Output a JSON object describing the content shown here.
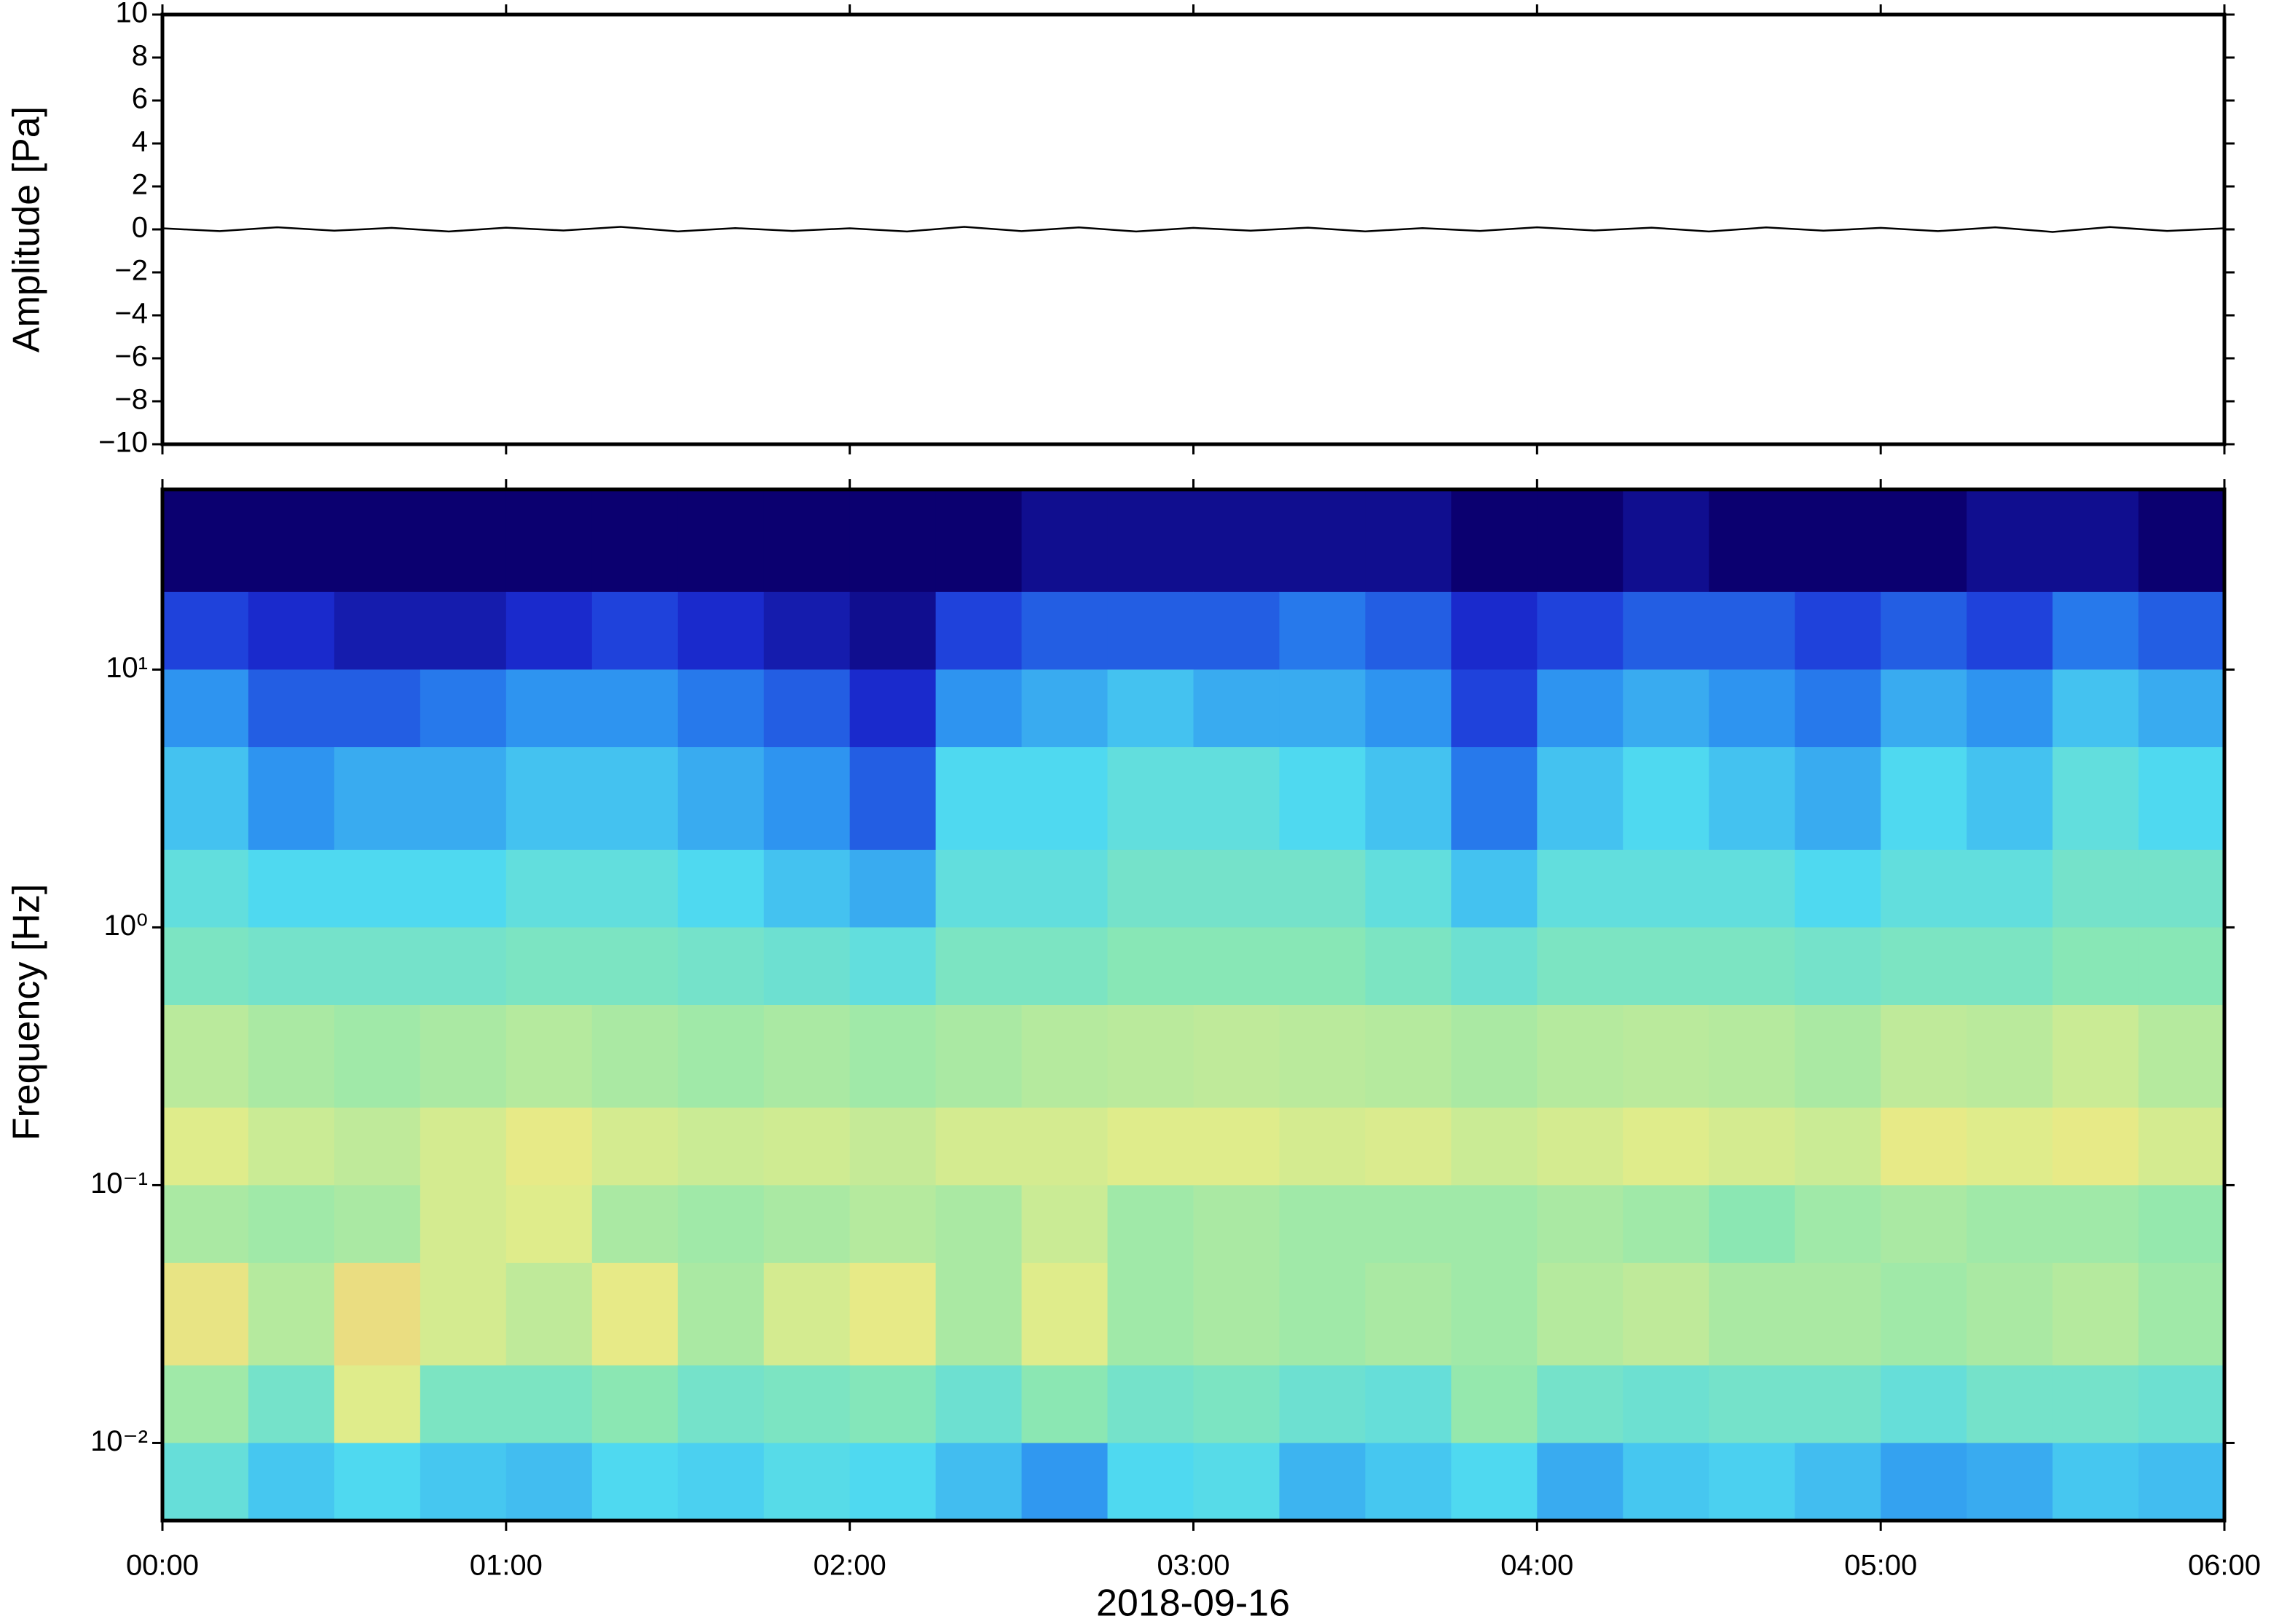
{
  "chart_data": [
    {
      "type": "line",
      "ylabel": "Amplitude [Pa]",
      "ylim": [
        -10,
        10
      ],
      "yticks": [
        {
          "value": -10,
          "label": "−10"
        },
        {
          "value": -8,
          "label": "−8"
        },
        {
          "value": -6,
          "label": "−6"
        },
        {
          "value": -4,
          "label": "−4"
        },
        {
          "value": -2,
          "label": "−2"
        },
        0,
        2,
        4,
        6,
        8,
        10
      ],
      "xlim": [
        "2018-09-16T00:00",
        "2018-09-16T06:00"
      ],
      "x": [
        "2018-09-16T00:00",
        "2018-09-16T00:10",
        "2018-09-16T00:20",
        "2018-09-16T00:30",
        "2018-09-16T00:40",
        "2018-09-16T00:50",
        "2018-09-16T01:00",
        "2018-09-16T01:10",
        "2018-09-16T01:20",
        "2018-09-16T01:30",
        "2018-09-16T01:40",
        "2018-09-16T01:50",
        "2018-09-16T02:00",
        "2018-09-16T02:10",
        "2018-09-16T02:20",
        "2018-09-16T02:30",
        "2018-09-16T02:40",
        "2018-09-16T02:50",
        "2018-09-16T03:00",
        "2018-09-16T03:10",
        "2018-09-16T03:20",
        "2018-09-16T03:30",
        "2018-09-16T03:40",
        "2018-09-16T03:50",
        "2018-09-16T04:00",
        "2018-09-16T04:10",
        "2018-09-16T04:20",
        "2018-09-16T04:30",
        "2018-09-16T04:40",
        "2018-09-16T04:50",
        "2018-09-16T05:00",
        "2018-09-16T05:10",
        "2018-09-16T05:20",
        "2018-09-16T05:30",
        "2018-09-16T05:40",
        "2018-09-16T05:50",
        "2018-09-16T06:00"
      ],
      "series": [
        {
          "color": "#000000",
          "values": [
            0.05,
            -0.08,
            0.1,
            -0.06,
            0.07,
            -0.1,
            0.08,
            -0.05,
            0.12,
            -0.09,
            0.06,
            -0.07,
            0.05,
            -0.1,
            0.12,
            -0.08,
            0.09,
            -0.1,
            0.07,
            -0.06,
            0.08,
            -0.09,
            0.06,
            -0.07,
            0.1,
            -0.05,
            0.08,
            -0.1,
            0.09,
            -0.06,
            0.07,
            -0.08,
            0.1,
            -0.12,
            0.11,
            -0.07,
            0.05
          ]
        }
      ]
    },
    {
      "type": "spectrogram",
      "ylabel": "Frequency [Hz]",
      "xlabel": "2018-09-16",
      "log_y": true,
      "ylim": [
        0.005,
        50
      ],
      "yticks": [
        {
          "value": 0.01,
          "label": "10⁻²"
        },
        {
          "value": 0.1,
          "label": "10⁻¹"
        },
        {
          "value": 1,
          "label": "10⁰"
        },
        {
          "value": 10,
          "label": "10¹"
        }
      ],
      "xlim": [
        "2018-09-16T00:00",
        "2018-09-16T06:00"
      ],
      "xticks": [
        {
          "value": "2018-09-16T00:00",
          "label": "00:00"
        },
        {
          "value": "2018-09-16T01:00",
          "label": "01:00"
        },
        {
          "value": "2018-09-16T02:00",
          "label": "02:00"
        },
        {
          "value": "2018-09-16T03:00",
          "label": "03:00"
        },
        {
          "value": "2018-09-16T04:00",
          "label": "04:00"
        },
        {
          "value": "2018-09-16T05:00",
          "label": "05:00"
        },
        {
          "value": "2018-09-16T06:00",
          "label": "06:00"
        }
      ],
      "time_bins": [
        "2018-09-16T00:00",
        "2018-09-16T00:15",
        "2018-09-16T00:30",
        "2018-09-16T00:45",
        "2018-09-16T01:00",
        "2018-09-16T01:15",
        "2018-09-16T01:30",
        "2018-09-16T01:45",
        "2018-09-16T02:00",
        "2018-09-16T02:15",
        "2018-09-16T02:30",
        "2018-09-16T02:45",
        "2018-09-16T03:00",
        "2018-09-16T03:15",
        "2018-09-16T03:30",
        "2018-09-16T03:45",
        "2018-09-16T04:00",
        "2018-09-16T04:15",
        "2018-09-16T04:30",
        "2018-09-16T04:45",
        "2018-09-16T05:00",
        "2018-09-16T05:15",
        "2018-09-16T05:30",
        "2018-09-16T05:45",
        "2018-09-16T06:00"
      ],
      "freq_bins": [
        50,
        20,
        10,
        5,
        2,
        1,
        0.5,
        0.2,
        0.1,
        0.05,
        0.02,
        0.01,
        0.005
      ],
      "zlim": [
        0,
        1
      ],
      "colormap": [
        "#0b0070",
        "#1c2fd6",
        "#2a8cf0",
        "#4fd9f0",
        "#8ee8b0",
        "#e6ec88",
        "#f5b870"
      ],
      "values": [
        [
          0,
          0,
          0,
          0,
          0,
          0,
          0,
          0,
          0,
          0,
          0.05,
          0.05,
          0.05,
          0.05,
          0.05,
          0,
          0,
          0.05,
          0,
          0,
          0,
          0.05,
          0.05,
          0
        ],
        [
          0.2,
          0.15,
          0.1,
          0.1,
          0.15,
          0.2,
          0.15,
          0.1,
          0.05,
          0.2,
          0.25,
          0.25,
          0.25,
          0.3,
          0.25,
          0.15,
          0.2,
          0.25,
          0.25,
          0.2,
          0.25,
          0.2,
          0.3,
          0.25
        ],
        [
          0.35,
          0.25,
          0.25,
          0.3,
          0.35,
          0.35,
          0.3,
          0.25,
          0.15,
          0.35,
          0.4,
          0.45,
          0.4,
          0.4,
          0.35,
          0.2,
          0.35,
          0.4,
          0.35,
          0.3,
          0.4,
          0.35,
          0.45,
          0.4
        ],
        [
          0.45,
          0.35,
          0.4,
          0.4,
          0.45,
          0.45,
          0.4,
          0.35,
          0.25,
          0.5,
          0.5,
          0.55,
          0.55,
          0.5,
          0.45,
          0.3,
          0.45,
          0.5,
          0.45,
          0.4,
          0.5,
          0.45,
          0.55,
          0.5
        ],
        [
          0.55,
          0.5,
          0.5,
          0.5,
          0.55,
          0.55,
          0.5,
          0.45,
          0.4,
          0.55,
          0.55,
          0.6,
          0.6,
          0.6,
          0.55,
          0.45,
          0.55,
          0.55,
          0.55,
          0.5,
          0.55,
          0.55,
          0.6,
          0.6
        ],
        [
          0.62,
          0.6,
          0.6,
          0.6,
          0.62,
          0.62,
          0.6,
          0.58,
          0.55,
          0.62,
          0.62,
          0.65,
          0.65,
          0.65,
          0.62,
          0.58,
          0.62,
          0.62,
          0.62,
          0.6,
          0.62,
          0.62,
          0.65,
          0.65
        ],
        [
          0.75,
          0.72,
          0.7,
          0.72,
          0.74,
          0.72,
          0.7,
          0.72,
          0.7,
          0.72,
          0.74,
          0.75,
          0.76,
          0.75,
          0.74,
          0.72,
          0.74,
          0.75,
          0.74,
          0.72,
          0.76,
          0.75,
          0.78,
          0.74
        ],
        [
          0.82,
          0.78,
          0.76,
          0.8,
          0.84,
          0.8,
          0.78,
          0.79,
          0.77,
          0.8,
          0.8,
          0.82,
          0.82,
          0.8,
          0.81,
          0.78,
          0.8,
          0.82,
          0.8,
          0.78,
          0.84,
          0.82,
          0.84,
          0.8
        ],
        [
          0.72,
          0.7,
          0.72,
          0.8,
          0.82,
          0.72,
          0.7,
          0.72,
          0.74,
          0.72,
          0.78,
          0.7,
          0.72,
          0.7,
          0.7,
          0.7,
          0.72,
          0.7,
          0.66,
          0.7,
          0.72,
          0.7,
          0.7,
          0.68
        ],
        [
          0.86,
          0.74,
          0.88,
          0.8,
          0.76,
          0.84,
          0.72,
          0.8,
          0.84,
          0.72,
          0.82,
          0.7,
          0.72,
          0.7,
          0.72,
          0.7,
          0.74,
          0.76,
          0.72,
          0.72,
          0.7,
          0.72,
          0.74,
          0.7
        ],
        [
          0.7,
          0.6,
          0.82,
          0.62,
          0.62,
          0.66,
          0.6,
          0.62,
          0.64,
          0.58,
          0.66,
          0.6,
          0.62,
          0.58,
          0.56,
          0.68,
          0.6,
          0.58,
          0.6,
          0.6,
          0.56,
          0.6,
          0.6,
          0.58
        ],
        [
          0.56,
          0.46,
          0.5,
          0.46,
          0.44,
          0.5,
          0.48,
          0.52,
          0.5,
          0.44,
          0.36,
          0.5,
          0.52,
          0.42,
          0.46,
          0.5,
          0.4,
          0.46,
          0.48,
          0.44,
          0.38,
          0.4,
          0.46,
          0.44
        ]
      ]
    }
  ]
}
